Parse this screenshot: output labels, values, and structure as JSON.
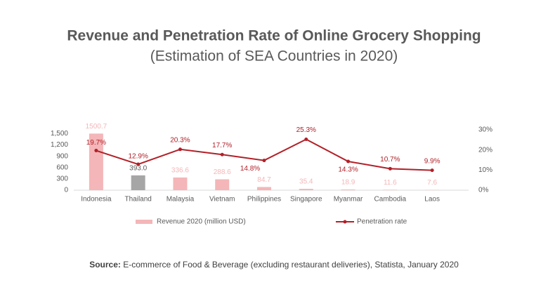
{
  "chart_data": {
    "type": "bar-line",
    "title": "Revenue and Penetration Rate of Online Grocery Shopping",
    "subtitle": "(Estimation of SEA Countries in 2020)",
    "categories": [
      "Indonesia",
      "Thailand",
      "Malaysia",
      "Vietnam",
      "Philippines",
      "Singapore",
      "Myanmar",
      "Cambodia",
      "Laos"
    ],
    "series": [
      {
        "name": "Revenue 2020 (million USD)",
        "type": "bar",
        "color": "#f4b6b8",
        "colors": [
          "#f4b6b8",
          "#a6a6a6",
          "#f4b6b8",
          "#f4b6b8",
          "#f4b6b8",
          "#f4b6b8",
          "#f4b6b8",
          "#f4b6b8",
          "#f4b6b8"
        ],
        "label_colors": [
          "#f4b6b8",
          "#595959",
          "#f4b6b8",
          "#f4b6b8",
          "#f4b6b8",
          "#f4b6b8",
          "#f4b6b8",
          "#f4b6b8",
          "#f4b6b8"
        ],
        "values": [
          1500.7,
          393,
          336.6,
          288.6,
          84.7,
          35.4,
          18.9,
          11.6,
          7.6
        ],
        "value_labels": [
          "1500.7",
          "393.0",
          "336.6",
          "288.6",
          "84.7",
          "35.4",
          "18.9",
          "11.6",
          "7.6"
        ]
      },
      {
        "name": "Penetration rate",
        "type": "line",
        "color": "#b22028",
        "axis": "y2",
        "values": [
          19.7,
          12.9,
          20.3,
          17.7,
          14.8,
          25.3,
          14.3,
          10.7,
          9.9
        ],
        "value_labels": [
          "19.7%",
          "12.9%",
          "20.3%",
          "17.7%",
          "14.8%",
          "25.3%",
          "14.3%",
          "10.7%",
          "9.9%"
        ]
      }
    ],
    "ylim": [
      0,
      1600
    ],
    "yticks": [
      0,
      300,
      600,
      900,
      {
        "value": 1200,
        "label": "1,200"
      },
      {
        "value": 1500,
        "label": "1,500"
      }
    ],
    "y2lim": [
      0,
      30
    ],
    "y2ticks": [
      {
        "value": 0,
        "label": "0%"
      },
      {
        "value": 10,
        "label": "10%"
      },
      {
        "value": 20,
        "label": "20%"
      },
      {
        "value": 30,
        "label": "30%"
      }
    ],
    "source_label": "Source:",
    "source": "E-commerce of Food & Beverage (excluding restaurant deliveries), Statista, January 2020"
  }
}
